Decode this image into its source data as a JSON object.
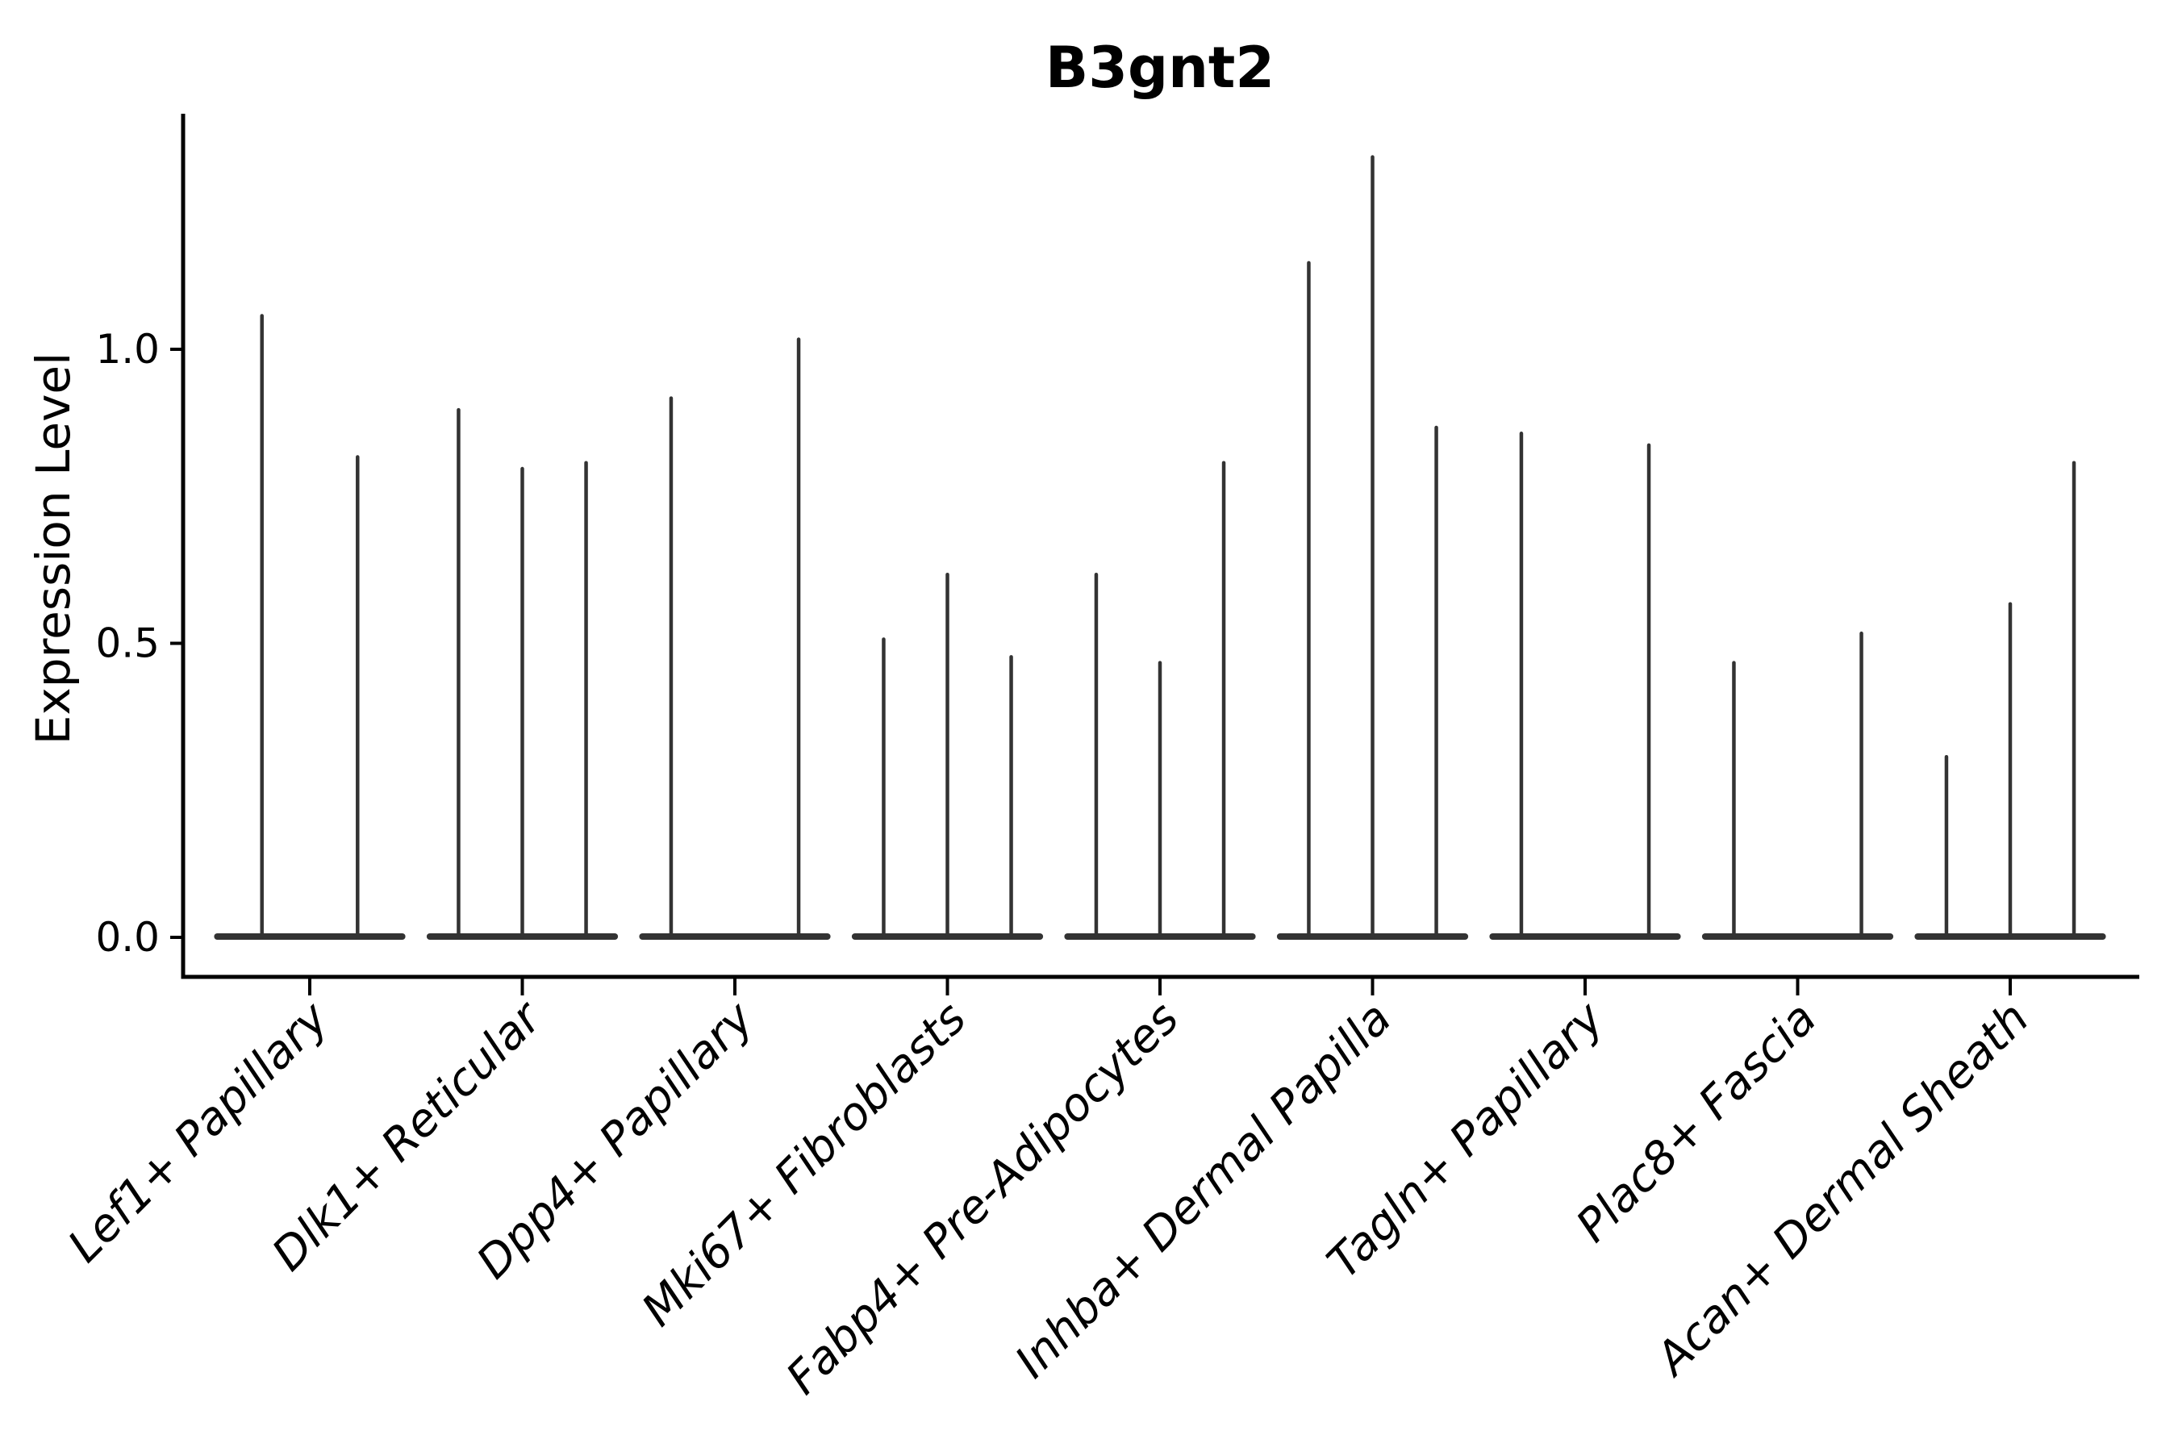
{
  "figure": {
    "background_color": "#ffffff",
    "axis_color": "#000000",
    "violin_color": "#333333"
  },
  "chart_data": {
    "type": "violin",
    "title": "B3gnt2",
    "xlabel": "",
    "ylabel": "Expression Level",
    "grid": false,
    "legend": "none",
    "yticks": [
      0.0,
      0.5,
      1.0
    ],
    "ytick_labels": [
      "0.0",
      "0.5",
      "1.0"
    ],
    "ylim": [
      -0.07,
      1.4
    ],
    "categories": [
      "Lef1+ Papillary",
      "Dlk1+ Reticular",
      "Dpp4+ Papillary",
      "Mki67+ Fibroblasts",
      "Fabp4+ Pre-Adipocytes",
      "Inhba+ Dermal Papilla",
      "Tagln+ Papillary",
      "Plac8+ Fascia",
      "Acan+ Dermal Sheath"
    ],
    "groups": [
      {
        "category": "Lef1+ Papillary",
        "violins": [
          {
            "offset": -0.225,
            "max_expression": 1.06
          },
          {
            "offset": 0.225,
            "max_expression": 0.82
          }
        ]
      },
      {
        "category": "Dlk1+ Reticular",
        "violins": [
          {
            "offset": -0.3,
            "max_expression": 0.9
          },
          {
            "offset": 0.0,
            "max_expression": 0.8
          },
          {
            "offset": 0.3,
            "max_expression": 0.81
          }
        ]
      },
      {
        "category": "Dpp4+ Papillary",
        "violins": [
          {
            "offset": -0.3,
            "max_expression": 0.92
          },
          {
            "offset": 0.3,
            "max_expression": 1.02
          }
        ]
      },
      {
        "category": "Mki67+ Fibroblasts",
        "violins": [
          {
            "offset": -0.3,
            "max_expression": 0.51
          },
          {
            "offset": 0.0,
            "max_expression": 0.62
          },
          {
            "offset": 0.3,
            "max_expression": 0.48
          }
        ]
      },
      {
        "category": "Fabp4+ Pre-Adipocytes",
        "violins": [
          {
            "offset": -0.3,
            "max_expression": 0.62
          },
          {
            "offset": 0.0,
            "max_expression": 0.47
          },
          {
            "offset": 0.3,
            "max_expression": 0.81
          }
        ]
      },
      {
        "category": "Inhba+ Dermal Papilla",
        "violins": [
          {
            "offset": -0.3,
            "max_expression": 1.15
          },
          {
            "offset": 0.0,
            "max_expression": 1.33
          },
          {
            "offset": 0.3,
            "max_expression": 0.87
          }
        ]
      },
      {
        "category": "Tagln+ Papillary",
        "violins": [
          {
            "offset": -0.3,
            "max_expression": 0.86
          },
          {
            "offset": 0.3,
            "max_expression": 0.84
          }
        ]
      },
      {
        "category": "Plac8+ Fascia",
        "violins": [
          {
            "offset": -0.3,
            "max_expression": 0.47
          },
          {
            "offset": 0.3,
            "max_expression": 0.52
          }
        ]
      },
      {
        "category": "Acan+ Dermal Sheath",
        "violins": [
          {
            "offset": -0.3,
            "max_expression": 0.31
          },
          {
            "offset": 0.0,
            "max_expression": 0.57
          },
          {
            "offset": 0.3,
            "max_expression": 0.81
          }
        ]
      }
    ],
    "style": {
      "violin_color": "#333333",
      "axis_color": "#000000",
      "background": "#ffffff"
    }
  }
}
